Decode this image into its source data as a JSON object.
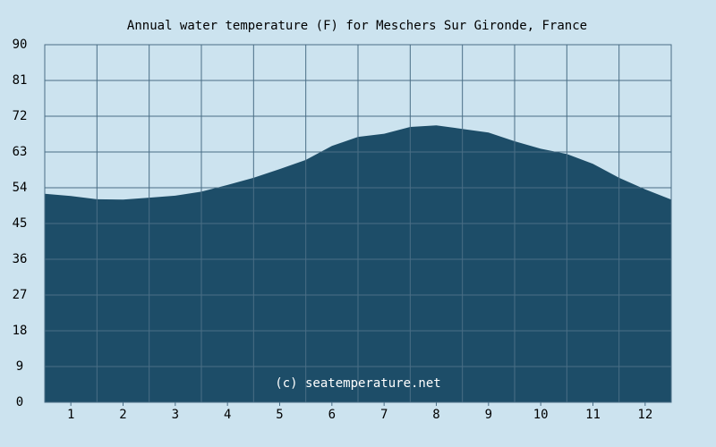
{
  "chart_data": {
    "type": "area",
    "title": "Annual water temperature (F) for Meschers Sur Gironde, France",
    "xlabel": "",
    "ylabel": "",
    "categories": [
      "1",
      "2",
      "3",
      "4",
      "5",
      "6",
      "7",
      "8",
      "9",
      "10",
      "11",
      "12"
    ],
    "ylim": [
      0,
      90
    ],
    "yticks": [
      0,
      9,
      18,
      27,
      36,
      45,
      54,
      63,
      72,
      81,
      90
    ],
    "xlim": [
      0.5,
      12.5
    ],
    "grid": true,
    "series": [
      {
        "name": "",
        "x": [
          0.5,
          1.0,
          1.5,
          2.0,
          2.5,
          3.0,
          3.5,
          4.0,
          4.5,
          5.0,
          5.5,
          6.0,
          6.5,
          7.0,
          7.5,
          8.0,
          8.5,
          9.0,
          9.5,
          10.0,
          10.5,
          11.0,
          11.5,
          12.0,
          12.5
        ],
        "values": [
          52.5,
          51.9,
          51.1,
          51.0,
          51.5,
          52.0,
          53.0,
          54.7,
          56.5,
          58.7,
          61.0,
          64.5,
          66.8,
          67.6,
          69.3,
          69.7,
          68.8,
          67.9,
          65.7,
          63.8,
          62.5,
          60.0,
          56.5,
          53.6,
          51.0
        ],
        "color": "#1d4d68"
      }
    ],
    "colors": {
      "background": "#cce3ef",
      "area": "#1d4d68",
      "grid": "#4a6e86"
    }
  },
  "watermark": "(c) seatemperature.net"
}
